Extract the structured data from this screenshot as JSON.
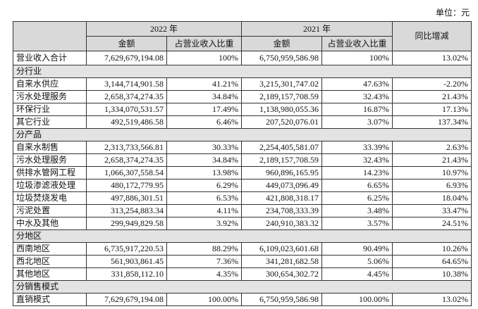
{
  "unit": "单位：元",
  "table": {
    "header": {
      "year_2022": "2022 年",
      "year_2021": "2021 年",
      "yoy": "同比增减",
      "columns": [
        "金额",
        "占营业收入比重",
        "金额",
        "占营业收入比重"
      ]
    },
    "rows": [
      [
        "营业收入合计",
        "7,629,679,194.08",
        "100%",
        "6,750,959,586.98",
        "100%",
        "13.02%"
      ],
      {
        "section": "分行业"
      },
      [
        "自来水供应",
        "3,144,714,901.58",
        "41.21%",
        "3,215,301,747.02",
        "47.63%",
        "-2.20%"
      ],
      [
        "污水处理服务",
        "2,658,374,274.35",
        "34.84%",
        "2,189,157,708.59",
        "32.43%",
        "21.43%"
      ],
      [
        "环保行业",
        "1,334,070,531.57",
        "17.49%",
        "1,138,980,055.36",
        "16.87%",
        "17.13%"
      ],
      [
        "其它行业",
        "492,519,486.58",
        "6.46%",
        "207,520,076.01",
        "3.07%",
        "137.34%"
      ],
      {
        "section": "分产品"
      },
      [
        "自来水制售",
        "2,313,733,566.81",
        "30.33%",
        "2,254,405,581.07",
        "33.39%",
        "2.63%"
      ],
      [
        "污水处理服务",
        "2,658,374,274.35",
        "34.84%",
        "2,189,157,708.59",
        "32.43%",
        "21.43%"
      ],
      [
        "供排水管网工程",
        "1,066,307,558.54",
        "13.98%",
        "960,896,165.95",
        "14.23%",
        "10.97%"
      ],
      [
        "垃圾渗滤液处理",
        "480,172,779.95",
        "6.29%",
        "449,073,096.49",
        "6.65%",
        "6.93%"
      ],
      [
        "垃圾焚烧发电",
        "497,886,301.51",
        "6.53%",
        "421,808,318.17",
        "6.25%",
        "18.04%"
      ],
      [
        "污泥处置",
        "313,254,883.34",
        "4.11%",
        "234,708,333.39",
        "3.48%",
        "33.47%"
      ],
      [
        "中水及其他",
        "299,949,829.58",
        "3.92%",
        "240,910,383.32",
        "3.57%",
        "24.51%"
      ],
      {
        "section": "分地区"
      },
      [
        "西南地区",
        "6,735,917,220.53",
        "88.29%",
        "6,109,023,601.68",
        "90.49%",
        "10.26%"
      ],
      [
        "西北地区",
        "561,903,861.45",
        "7.36%",
        "341,281,682.58",
        "5.06%",
        "64.65%"
      ],
      [
        "其他地区",
        "331,858,112.10",
        "4.35%",
        "300,654,302.72",
        "4.45%",
        "10.38%"
      ],
      {
        "section": "分销售模式"
      },
      [
        "直销模式",
        "7,629,679,194.08",
        "100.00%",
        "6,750,959,586.98",
        "100.00%",
        "13.02%"
      ]
    ]
  }
}
